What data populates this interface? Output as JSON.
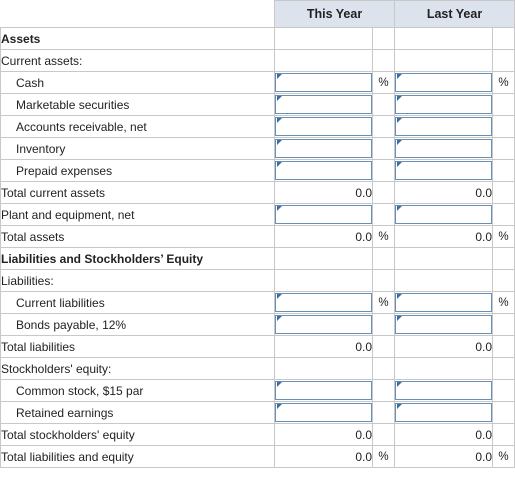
{
  "columns": {
    "this_year": "This Year",
    "last_year": "Last Year"
  },
  "pct_symbol": "%",
  "rows": {
    "assets": "Assets",
    "current_assets": "Current assets:",
    "cash": "Cash",
    "marketable_securities": "Marketable securities",
    "accounts_receivable": "Accounts receivable, net",
    "inventory": "Inventory",
    "prepaid_expenses": "Prepaid expenses",
    "total_current_assets": "Total current assets",
    "plant_equipment": "Plant and equipment, net",
    "total_assets": "Total assets",
    "liab_equity": "Liabilities and Stockholders’ Equity",
    "liabilities": "Liabilities:",
    "current_liabilities": "Current liabilities",
    "bonds_payable": "Bonds payable, 12%",
    "total_liabilities": "Total liabilities",
    "stockholders_equity": "Stockholders' equity:",
    "common_stock": "Common stock, $15 par",
    "retained_earnings": "Retained earnings",
    "total_stockholders_equity": "Total stockholders' equity",
    "total_liab_equity": "Total liabilities and equity"
  },
  "values": {
    "total_current_assets": {
      "this_year": "0.0",
      "last_year": "0.0"
    },
    "total_assets": {
      "this_year": "0.0",
      "last_year": "0.0"
    },
    "total_liabilities": {
      "this_year": "0.0",
      "last_year": "0.0"
    },
    "total_stockholders_equity": {
      "this_year": "0.0",
      "last_year": "0.0"
    },
    "total_liab_equity": {
      "this_year": "0.0",
      "last_year": "0.0"
    }
  }
}
